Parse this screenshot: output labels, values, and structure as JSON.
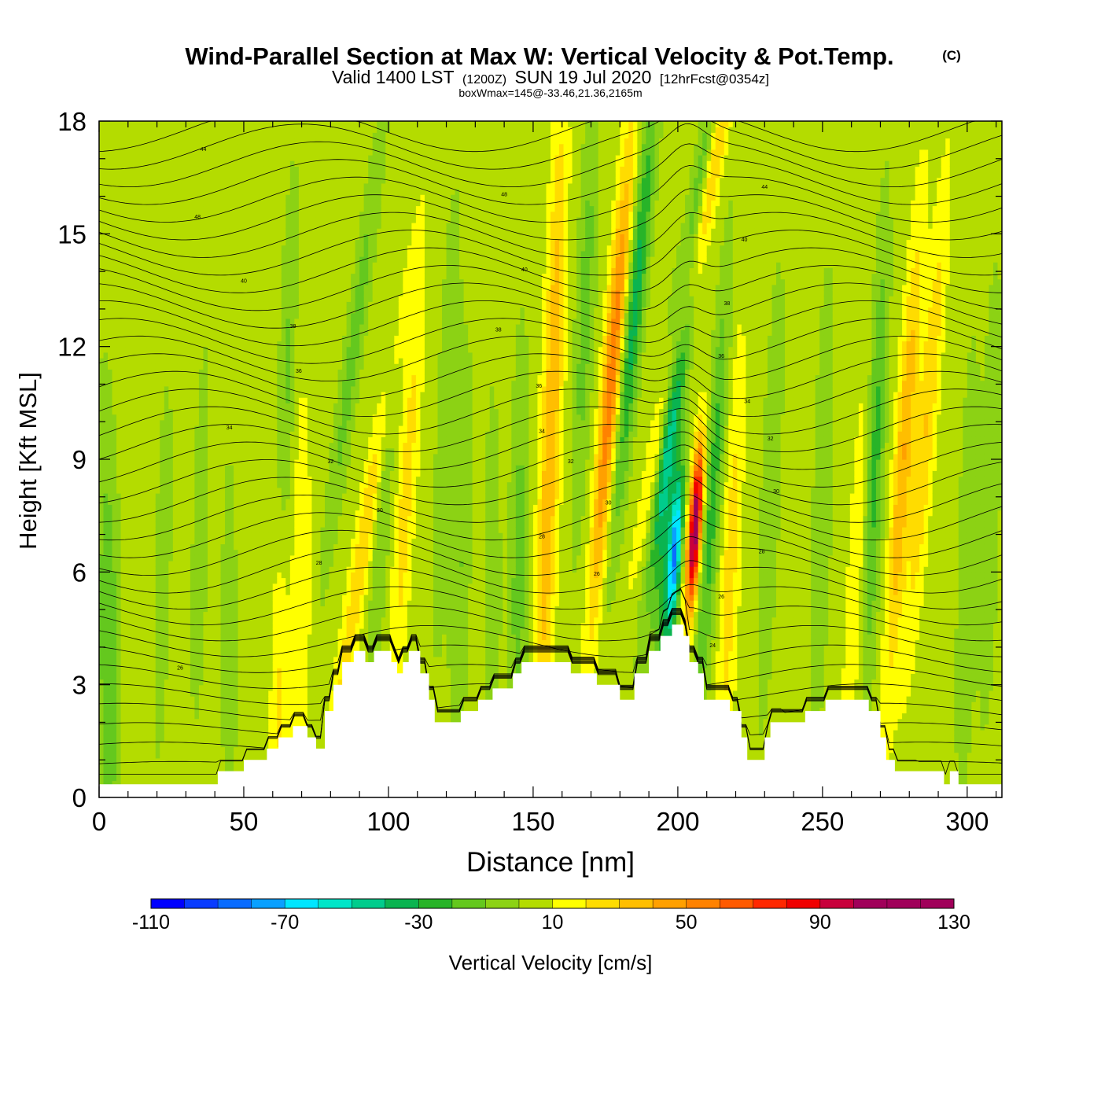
{
  "chart_data": {
    "type": "heatmap",
    "title": "Wind-Parallel Section at Max W: Vertical Velocity & Pot.Temp.",
    "title_mark": "(C)",
    "subtitle": {
      "part1": "Valid 1400 LST",
      "part2": "(1200Z)",
      "part3": "SUN 19 Jul 2020",
      "part4": "[12hrFcst@0354z]"
    },
    "subtitle2": "boxWmax=145@-33.46,21.36,2165m",
    "xlabel": "Distance [nm]",
    "ylabel": "Height [Kft MSL]",
    "xlim": [
      0,
      312
    ],
    "ylim": [
      0,
      18
    ],
    "xticks": [
      "0",
      "50",
      "100",
      "150",
      "200",
      "250",
      "300"
    ],
    "yticks": [
      "0",
      "3",
      "6",
      "9",
      "12",
      "15",
      "18"
    ],
    "colorbar": {
      "label": "Vertical Velocity [cm/s]",
      "min": -110,
      "max": 130,
      "step": 10,
      "tick_labels": [
        "-110",
        "-70",
        "-30",
        "10",
        "50",
        "90",
        "130"
      ],
      "colors": [
        "#0000ff",
        "#0a3cff",
        "#0a6cff",
        "#0aa0ff",
        "#00e6ff",
        "#00e6c8",
        "#00cc8c",
        "#0ab450",
        "#28b428",
        "#64c81e",
        "#8cd214",
        "#b4dc00",
        "#ffff00",
        "#ffdc00",
        "#ffbe00",
        "#ffa000",
        "#ff8200",
        "#ff5a00",
        "#ff2800",
        "#f00000",
        "#c8003c",
        "#a0005a"
      ]
    },
    "background_w": 5,
    "terrain_kft": [
      [
        0,
        0.35
      ],
      [
        41,
        0.35
      ],
      [
        41,
        0.7
      ],
      [
        50,
        0.7
      ],
      [
        50,
        1.0
      ],
      [
        58,
        1.0
      ],
      [
        58,
        1.3
      ],
      [
        62,
        1.3
      ],
      [
        62,
        1.6
      ],
      [
        67,
        1.6
      ],
      [
        67,
        1.9
      ],
      [
        72,
        1.9
      ],
      [
        72,
        1.6
      ],
      [
        75,
        1.6
      ],
      [
        75,
        1.3
      ],
      [
        78,
        1.3
      ],
      [
        78,
        2.3
      ],
      [
        81,
        2.3
      ],
      [
        81,
        3.0
      ],
      [
        84,
        3.0
      ],
      [
        84,
        3.6
      ],
      [
        88,
        3.6
      ],
      [
        88,
        3.9
      ],
      [
        92,
        3.9
      ],
      [
        92,
        3.6
      ],
      [
        95,
        3.6
      ],
      [
        95,
        3.9
      ],
      [
        101,
        3.9
      ],
      [
        101,
        3.6
      ],
      [
        103,
        3.6
      ],
      [
        103,
        3.3
      ],
      [
        105,
        3.3
      ],
      [
        105,
        3.6
      ],
      [
        107,
        3.6
      ],
      [
        107,
        3.9
      ],
      [
        111,
        3.9
      ],
      [
        111,
        3.3
      ],
      [
        114,
        3.3
      ],
      [
        114,
        2.6
      ],
      [
        116,
        2.6
      ],
      [
        116,
        2.0
      ],
      [
        125,
        2.0
      ],
      [
        125,
        2.3
      ],
      [
        131,
        2.3
      ],
      [
        131,
        2.6
      ],
      [
        136,
        2.6
      ],
      [
        136,
        2.9
      ],
      [
        143,
        2.9
      ],
      [
        143,
        3.3
      ],
      [
        146,
        3.3
      ],
      [
        146,
        3.6
      ],
      [
        163,
        3.6
      ],
      [
        163,
        3.3
      ],
      [
        172,
        3.3
      ],
      [
        172,
        3.0
      ],
      [
        180,
        3.0
      ],
      [
        180,
        2.6
      ],
      [
        185,
        2.6
      ],
      [
        185,
        3.3
      ],
      [
        190,
        3.3
      ],
      [
        190,
        3.9
      ],
      [
        194,
        3.9
      ],
      [
        194,
        4.3
      ],
      [
        198,
        4.3
      ],
      [
        198,
        4.6
      ],
      [
        202,
        4.6
      ],
      [
        202,
        4.3
      ],
      [
        204,
        4.3
      ],
      [
        204,
        3.6
      ],
      [
        207,
        3.6
      ],
      [
        207,
        3.3
      ],
      [
        209,
        3.3
      ],
      [
        209,
        2.6
      ],
      [
        218,
        2.6
      ],
      [
        218,
        2.3
      ],
      [
        222,
        2.3
      ],
      [
        222,
        1.6
      ],
      [
        224,
        1.6
      ],
      [
        224,
        1.0
      ],
      [
        230,
        1.0
      ],
      [
        230,
        1.6
      ],
      [
        232,
        1.6
      ],
      [
        232,
        2.0
      ],
      [
        244,
        2.0
      ],
      [
        244,
        2.3
      ],
      [
        251,
        2.3
      ],
      [
        251,
        2.6
      ],
      [
        266,
        2.6
      ],
      [
        266,
        2.3
      ],
      [
        270,
        2.3
      ],
      [
        270,
        1.6
      ],
      [
        272,
        1.6
      ],
      [
        272,
        1.0
      ],
      [
        275,
        1.0
      ],
      [
        275,
        0.7
      ],
      [
        292,
        0.7
      ],
      [
        292,
        0.35
      ],
      [
        294,
        0.35
      ],
      [
        294,
        0.7
      ],
      [
        297,
        0.7
      ],
      [
        297,
        0.35
      ],
      [
        312,
        0.35
      ]
    ],
    "w_features": [
      {
        "x": 1,
        "h": 6,
        "w": -10,
        "lean": 0
      },
      {
        "x": 4,
        "h": 3,
        "w": -20,
        "lean": 0
      },
      {
        "x": 22,
        "h": 6,
        "w": -10,
        "lean": 2
      },
      {
        "x": 35,
        "h": 7,
        "w": -10,
        "lean": 2
      },
      {
        "x": 45,
        "h": 4,
        "w": -10,
        "lean": 0
      },
      {
        "x": 62,
        "h": 4,
        "w": 20,
        "lean": 0
      },
      {
        "x": 64,
        "h": 10,
        "w": -20,
        "lean": 3
      },
      {
        "x": 70,
        "h": 5,
        "w": 15,
        "lean": 0
      },
      {
        "x": 88,
        "h": 12,
        "w": -20,
        "lean": 10
      },
      {
        "x": 92,
        "h": 7,
        "w": 25,
        "lean": 12
      },
      {
        "x": 98,
        "h": 8,
        "w": -15,
        "lean": 4
      },
      {
        "x": 106,
        "h": 8,
        "w": 20,
        "lean": 5
      },
      {
        "x": 120,
        "h": 10,
        "w": -15,
        "lean": 3
      },
      {
        "x": 125,
        "h": 6,
        "w": -15,
        "lean": 2
      },
      {
        "x": 136,
        "h": 6,
        "w": -10,
        "lean": 0
      },
      {
        "x": 145,
        "h": 6,
        "w": -20,
        "lean": 1
      },
      {
        "x": 154,
        "h": 6,
        "w": 25,
        "lean": 2
      },
      {
        "x": 158,
        "h": 13,
        "w": 25,
        "lean": 2
      },
      {
        "x": 168,
        "h": 13,
        "w": -20,
        "lean": 3
      },
      {
        "x": 176,
        "h": 10,
        "w": 25,
        "lean": 6
      },
      {
        "x": 178,
        "h": 12,
        "w": 30,
        "lean": 6
      },
      {
        "x": 185,
        "h": 13,
        "w": -40,
        "lean": 7
      },
      {
        "x": 195,
        "h": 6,
        "w": -25,
        "lean": 3
      },
      {
        "x": 199,
        "h": 6.5,
        "w": -80,
        "lean": 5
      },
      {
        "x": 206,
        "h": 7.2,
        "w": 110,
        "lean": 5
      },
      {
        "x": 201,
        "h": 12,
        "w": -50,
        "lean": 10
      },
      {
        "x": 205,
        "h": 14,
        "w": 40,
        "lean": 15
      },
      {
        "x": 212,
        "h": 8,
        "w": -30,
        "lean": 5
      },
      {
        "x": 218,
        "h": 6,
        "w": 20,
        "lean": 3
      },
      {
        "x": 232,
        "h": 8,
        "w": -15,
        "lean": 3
      },
      {
        "x": 250,
        "h": 8,
        "w": -15,
        "lean": 2
      },
      {
        "x": 262,
        "h": 6,
        "w": 15,
        "lean": 4
      },
      {
        "x": 268,
        "h": 9,
        "w": -30,
        "lean": 3
      },
      {
        "x": 278,
        "h": 9,
        "w": 35,
        "lean": 5
      },
      {
        "x": 286,
        "h": 10,
        "w": 25,
        "lean": 6
      },
      {
        "x": 300,
        "h": 6,
        "w": -15,
        "lean": 2
      },
      {
        "x": 308,
        "h": 8,
        "w": -15,
        "lean": 2
      }
    ],
    "contour_labels": [
      {
        "text": "44",
        "x": 36,
        "y": 17.2
      },
      {
        "text": "48",
        "x": 34,
        "y": 15.4
      },
      {
        "text": "40",
        "x": 50,
        "y": 13.7
      },
      {
        "text": "38",
        "x": 67,
        "y": 12.5
      },
      {
        "text": "36",
        "x": 69,
        "y": 11.3
      },
      {
        "text": "34",
        "x": 45,
        "y": 9.8
      },
      {
        "text": "32",
        "x": 80,
        "y": 8.9
      },
      {
        "text": "30",
        "x": 97,
        "y": 7.6
      },
      {
        "text": "28",
        "x": 76,
        "y": 6.2
      },
      {
        "text": "26",
        "x": 28,
        "y": 3.4
      },
      {
        "text": "48",
        "x": 140,
        "y": 16.0
      },
      {
        "text": "40",
        "x": 147,
        "y": 14.0
      },
      {
        "text": "38",
        "x": 138,
        "y": 12.4
      },
      {
        "text": "36",
        "x": 152,
        "y": 10.9
      },
      {
        "text": "34",
        "x": 153,
        "y": 9.7
      },
      {
        "text": "32",
        "x": 163,
        "y": 8.9
      },
      {
        "text": "30",
        "x": 176,
        "y": 7.8
      },
      {
        "text": "28",
        "x": 153,
        "y": 6.9
      },
      {
        "text": "26",
        "x": 172,
        "y": 5.9
      },
      {
        "text": "44",
        "x": 230,
        "y": 16.2
      },
      {
        "text": "40",
        "x": 223,
        "y": 14.8
      },
      {
        "text": "38",
        "x": 217,
        "y": 13.1
      },
      {
        "text": "36",
        "x": 215,
        "y": 11.7
      },
      {
        "text": "34",
        "x": 224,
        "y": 10.5
      },
      {
        "text": "32",
        "x": 232,
        "y": 9.5
      },
      {
        "text": "30",
        "x": 234,
        "y": 8.1
      },
      {
        "text": "28",
        "x": 229,
        "y": 6.5
      },
      {
        "text": "26",
        "x": 215,
        "y": 5.3
      },
      {
        "text": "24",
        "x": 212,
        "y": 4.0
      }
    ]
  }
}
